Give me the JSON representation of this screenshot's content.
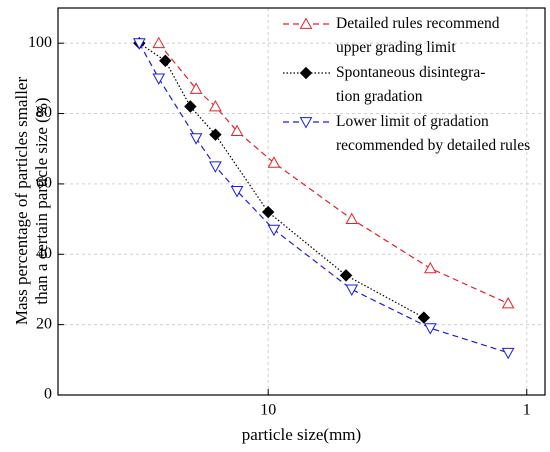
{
  "chart_data": {
    "type": "line",
    "xlabel": "particle size(mm)",
    "ylabel": "Mass percentage of particles smaller\nthan a certain particle size (%)",
    "x_scale": "log",
    "x_reversed": true,
    "grid": true,
    "legend": "upper right",
    "xlim": [
      65,
      0.85
    ],
    "xticks": [
      10,
      1
    ],
    "ylim": [
      0,
      110
    ],
    "yticks": [
      0,
      20,
      40,
      60,
      80,
      100
    ],
    "series": [
      {
        "name": "Detailed rules recommend\nupper grading limit",
        "color": "#e8202a",
        "marker": "triangle-up",
        "dash": "6,4",
        "x": [
          26.5,
          19,
          16,
          13.2,
          9.5,
          4.75,
          2.36,
          1.18
        ],
        "values": [
          100,
          87,
          82,
          75,
          66,
          50,
          36,
          26
        ]
      },
      {
        "name": "Spontaneous disintegra-\ntion gradation",
        "color": "#000000",
        "marker": "diamond",
        "dash": "1.5,2",
        "x": [
          31.5,
          25,
          20,
          16,
          10,
          5,
          2.5
        ],
        "values": [
          100,
          95,
          82,
          74,
          52,
          34,
          22
        ]
      },
      {
        "name": "Lower limit of gradation\nrecommended by detailed rules",
        "color": "#1c1ce0",
        "marker": "triangle-down",
        "dash": "6,4",
        "x": [
          31.5,
          26.5,
          19,
          16,
          13.2,
          9.5,
          4.75,
          2.36,
          1.18
        ],
        "values": [
          100,
          90,
          73,
          65,
          58,
          47,
          30,
          19,
          12
        ]
      }
    ]
  }
}
